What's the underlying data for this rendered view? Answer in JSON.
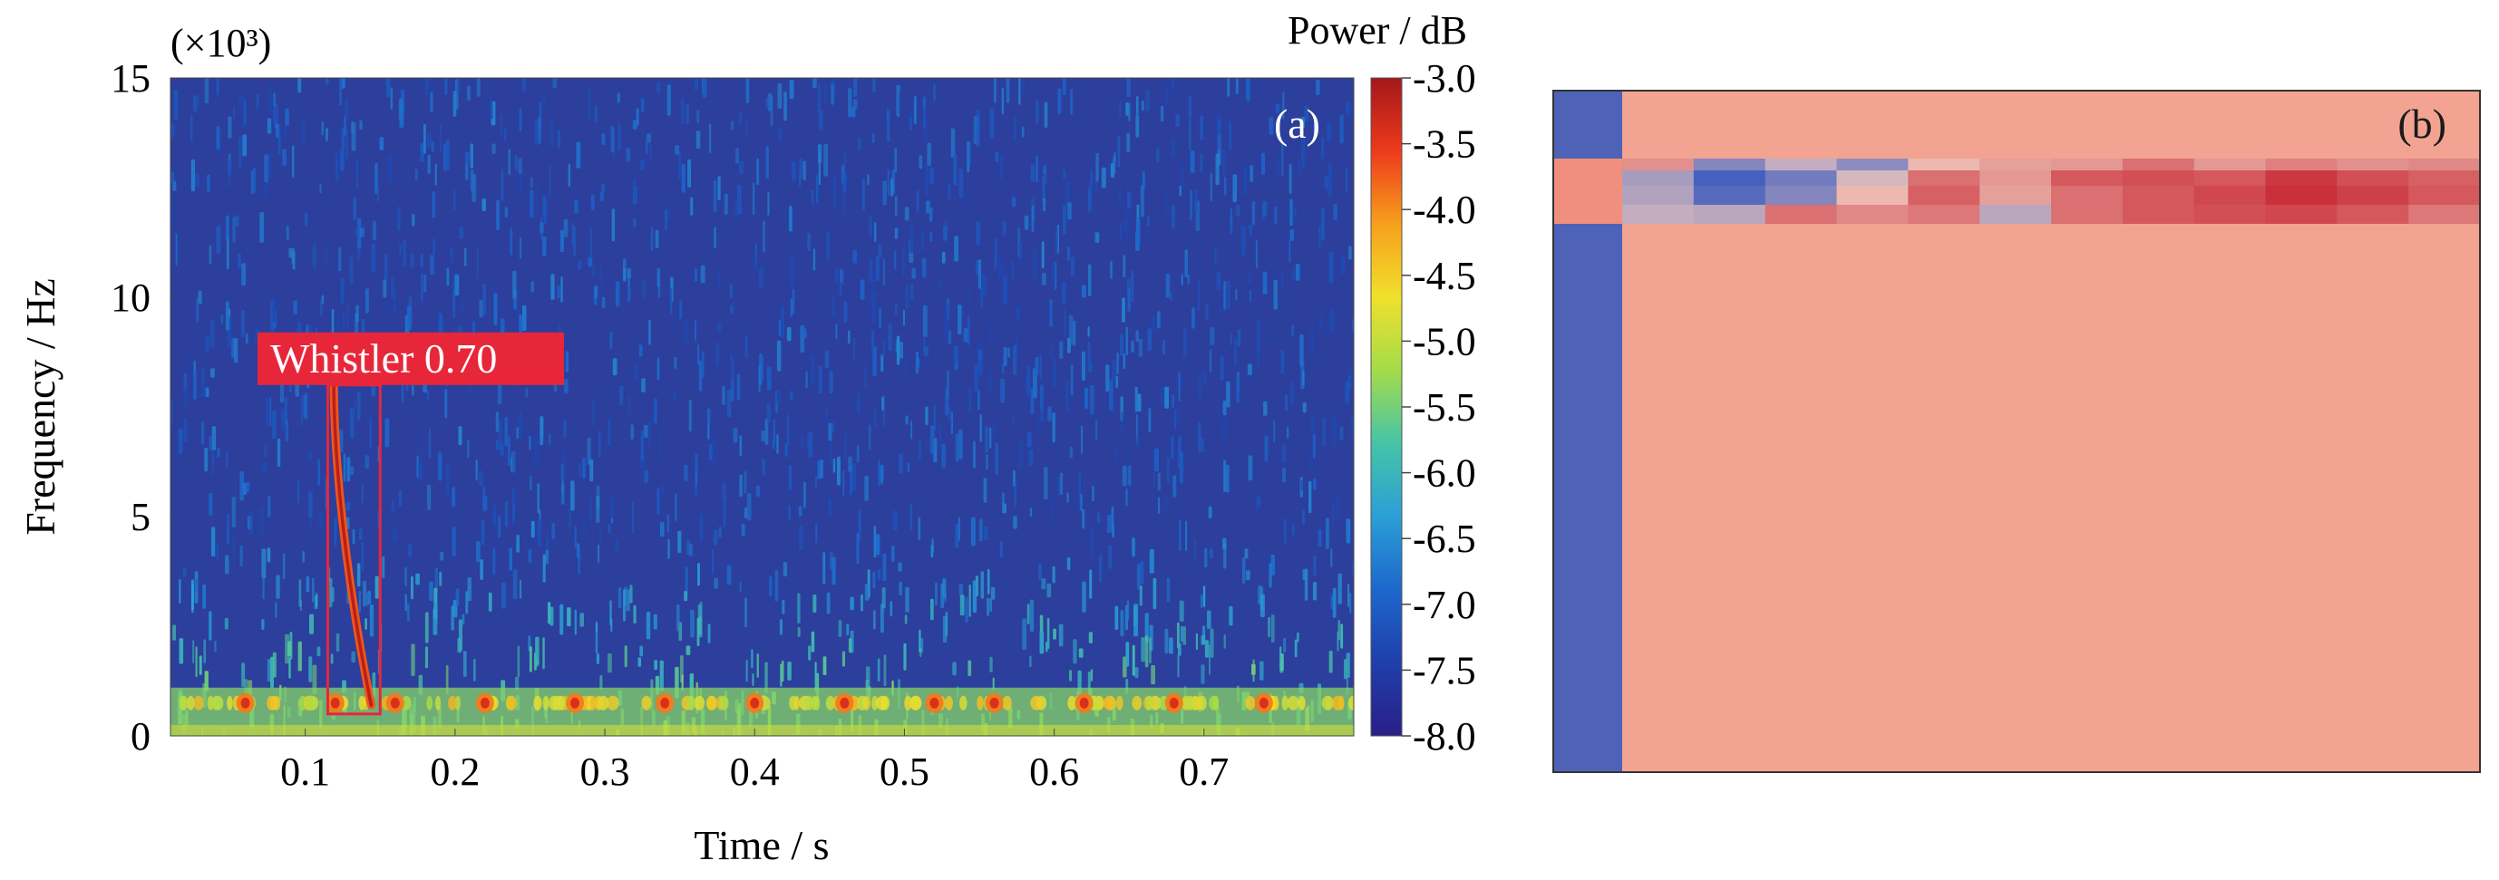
{
  "chart_data": [
    {
      "type": "heatmap",
      "panel_label": "(a)",
      "xlabel": "Time / s",
      "ylabel": "Frequency / Hz",
      "y_scale_note": "(×10³)",
      "xlim": [
        0.01,
        0.8
      ],
      "ylim": [
        0,
        15
      ],
      "x_ticks": [
        "0.1",
        "0.2",
        "0.3",
        "0.4",
        "0.5",
        "0.6",
        "0.7"
      ],
      "x_tick_values": [
        0.1,
        0.2,
        0.3,
        0.4,
        0.5,
        0.6,
        0.7
      ],
      "y_ticks": [
        "0",
        "5",
        "10",
        "15"
      ],
      "y_tick_values": [
        0,
        5,
        10,
        15
      ],
      "colorbar": {
        "title": "Power / dB",
        "range": [
          -8.0,
          -3.0
        ],
        "ticks": [
          "-3.0",
          "-3.5",
          "-4.0",
          "-4.5",
          "-5.0",
          "-5.5",
          "-6.0",
          "-6.5",
          "-7.0",
          "-7.5",
          "-8.0"
        ],
        "tick_values": [
          -3.0,
          -3.5,
          -4.0,
          -4.5,
          -5.0,
          -5.5,
          -6.0,
          -6.5,
          -7.0,
          -7.5,
          -8.0
        ]
      },
      "detection": {
        "label": "Whistler 0.70",
        "class": "Whistler",
        "score": 0.7,
        "time_range": [
          0.115,
          0.15
        ],
        "freq_range": [
          0.5,
          8.0
        ]
      },
      "band_peaks_time": [
        0.06,
        0.12,
        0.16,
        0.22,
        0.28,
        0.34,
        0.4,
        0.46,
        0.52,
        0.56,
        0.62,
        0.68,
        0.74
      ]
    },
    {
      "type": "heatmap",
      "panel_label": "(b)",
      "note": "activation map; no axes or tick labels shown",
      "accent_colors": {
        "background": "#f2a391",
        "left_strip": "#4e63b8"
      },
      "row_cells": [
        [
          0.55,
          0.35,
          -0.6,
          -0.25,
          -0.55,
          0.1,
          0.25,
          0.3,
          0.55,
          0.3,
          0.45,
          0.35,
          0.4
        ],
        [
          0.55,
          -0.4,
          -0.95,
          -0.7,
          -0.15,
          0.55,
          0.3,
          0.7,
          0.75,
          0.7,
          0.9,
          0.75,
          0.65
        ],
        [
          0.55,
          -0.35,
          -0.85,
          -0.6,
          0.1,
          0.65,
          0.25,
          0.55,
          0.7,
          0.8,
          0.95,
          0.85,
          0.7
        ],
        [
          0.55,
          -0.25,
          -0.3,
          0.55,
          0.4,
          0.5,
          -0.3,
          0.55,
          0.7,
          0.75,
          0.8,
          0.7,
          0.5
        ]
      ]
    }
  ],
  "colors": {
    "colorbar_stops": [
      "#2b1e88",
      "#1f3faa",
      "#1d67cc",
      "#2b9fd6",
      "#46c4a8",
      "#a4dc4a",
      "#f0e02c",
      "#f7a01c",
      "#ed3a1c",
      "#a3171a"
    ],
    "detection_red": "#e8263a",
    "background": "#ffffff"
  }
}
